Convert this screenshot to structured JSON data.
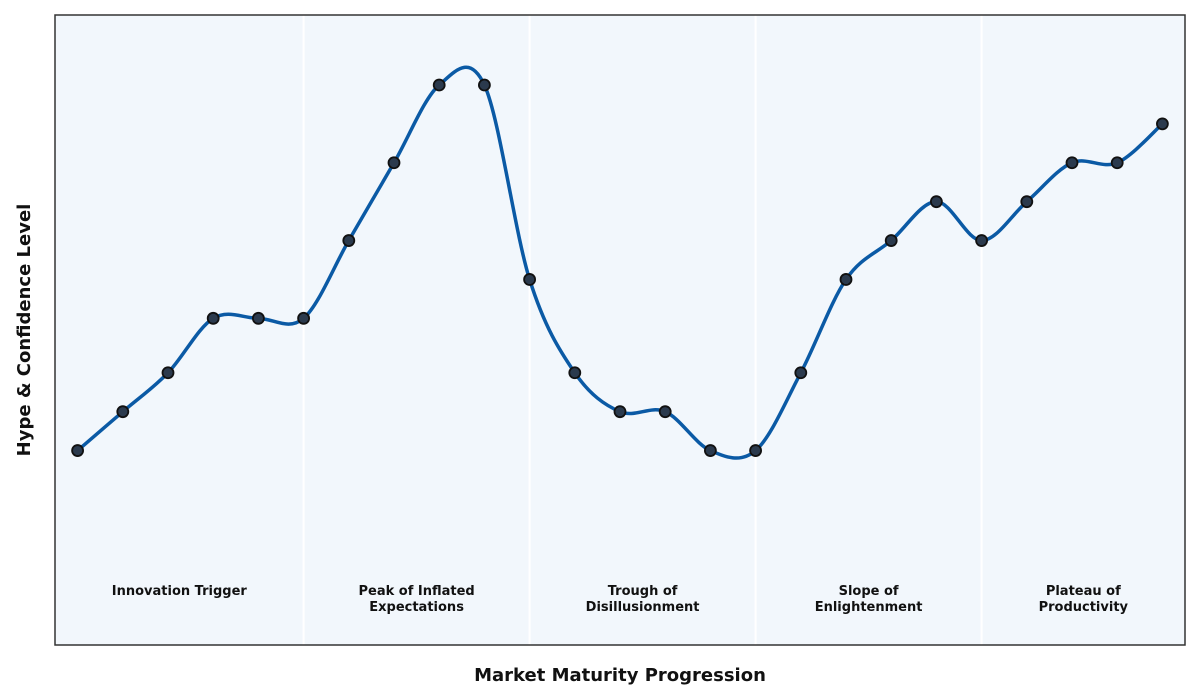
{
  "chart_data": {
    "type": "line",
    "xlabel": "Market Maturity Progression",
    "ylabel": "Hype & Confidence Level",
    "x": [
      0,
      1,
      2,
      3,
      4,
      5,
      6,
      7,
      8,
      9,
      10,
      11,
      12,
      13,
      14,
      15,
      16,
      17,
      18,
      19,
      20,
      21,
      22,
      23,
      24
    ],
    "values": [
      0.3,
      0.8,
      1.3,
      2.0,
      2.0,
      2.0,
      3.0,
      4.0,
      5.0,
      5.0,
      2.5,
      1.3,
      0.8,
      0.8,
      0.3,
      0.3,
      1.3,
      2.5,
      3.0,
      3.5,
      3.0,
      3.5,
      4.0,
      4.0,
      4.5
    ],
    "ylim": [
      -2.2,
      5.9
    ],
    "xlim": [
      -0.5,
      24.5
    ],
    "grid": false,
    "phases": [
      {
        "name": "innovation-trigger",
        "lines": [
          "Innovation Trigger"
        ],
        "start": -0.5,
        "end": 5.0
      },
      {
        "name": "peak-of-inflated-expectations",
        "lines": [
          "Peak of Inflated",
          "Expectations"
        ],
        "start": 5.0,
        "end": 10.0
      },
      {
        "name": "trough-of-disillusionment",
        "lines": [
          "Trough of",
          "Disillusionment"
        ],
        "start": 10.0,
        "end": 15.0
      },
      {
        "name": "slope-of-enlightenment",
        "lines": [
          "Slope of",
          "Enlightenment"
        ],
        "start": 15.0,
        "end": 20.0
      },
      {
        "name": "plateau-of-productivity",
        "lines": [
          "Plateau of",
          "Productivity"
        ],
        "start": 20.0,
        "end": 24.5
      }
    ],
    "colors": {
      "line": "#0b5aa5",
      "marker_fill": "#2b3a4d",
      "marker_edge": "#111111",
      "plot_bg": "#f2f7fc",
      "divider": "#ffffff",
      "frame": "#333333"
    }
  }
}
